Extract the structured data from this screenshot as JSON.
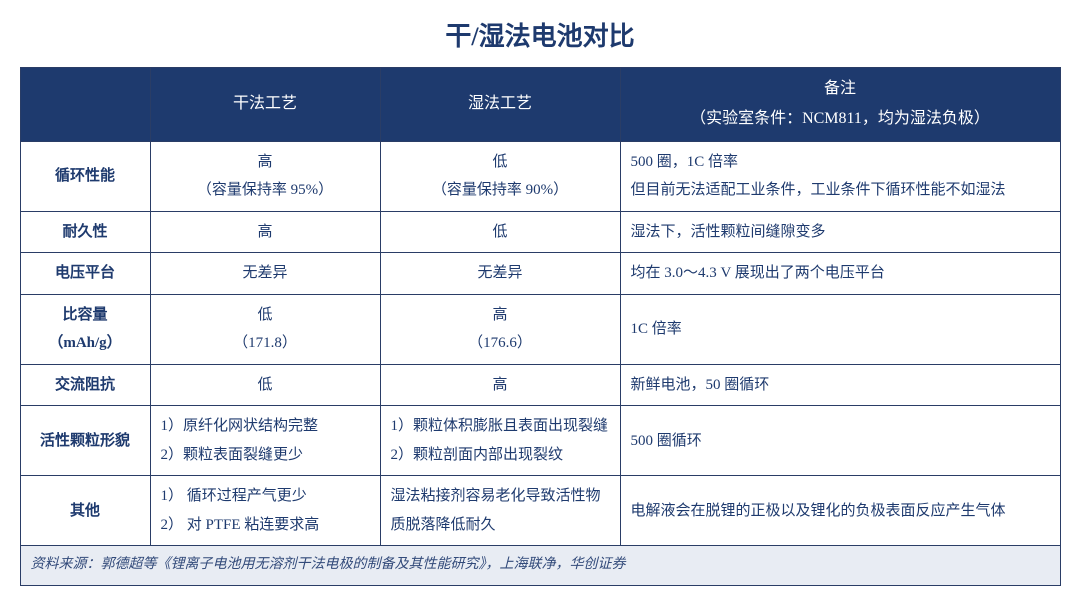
{
  "title": "干/湿法电池对比",
  "headers": {
    "blank": "",
    "col1": "干法工艺",
    "col2": "湿法工艺",
    "col3_line1": "备注",
    "col3_line2": "（实验室条件：NCM811，均为湿法负极）"
  },
  "rows": {
    "r1": {
      "label": "循环性能",
      "dry_l1": "高",
      "dry_l2": "（容量保持率 95%）",
      "wet_l1": "低",
      "wet_l2": "（容量保持率 90%）",
      "note_l1": "500 圈，1C 倍率",
      "note_l2": "但目前无法适配工业条件，工业条件下循环性能不如湿法"
    },
    "r2": {
      "label": "耐久性",
      "dry": "高",
      "wet": "低",
      "note": "湿法下，活性颗粒间缝隙变多"
    },
    "r3": {
      "label": "电压平台",
      "dry": "无差异",
      "wet": "无差异",
      "note": "均在 3.0～4.3 V 展现出了两个电压平台"
    },
    "r4": {
      "label_l1": "比容量",
      "label_l2": "（mAh/g）",
      "dry_l1": "低",
      "dry_l2": "（171.8）",
      "wet_l1": "高",
      "wet_l2": "（176.6）",
      "note": "1C 倍率"
    },
    "r5": {
      "label": "交流阻抗",
      "dry": "低",
      "wet": "高",
      "note": "新鲜电池，50 圈循环"
    },
    "r6": {
      "label": "活性颗粒形貌",
      "dry_l1": "1）原纤化网状结构完整",
      "dry_l2": "2）颗粒表面裂缝更少",
      "wet_l1": "1）颗粒体积膨胀且表面出现裂缝",
      "wet_l2": "2）颗粒剖面内部出现裂纹",
      "note": "500 圈循环"
    },
    "r7": {
      "label": "其他",
      "dry_l1": "1）  循环过程产气更少",
      "dry_l2": "2）  对 PTFE 粘连要求高",
      "wet": "湿法粘接剂容易老化导致活性物质脱落降低耐久",
      "note": "电解液会在脱锂的正极以及锂化的负极表面反应产生气体"
    }
  },
  "footer": "资料来源：郭德超等《锂离子电池用无溶剂干法电极的制备及其性能研究》，上海联净，华创证券",
  "colors": {
    "header_bg": "#1e3a6e",
    "header_text": "#ffffff",
    "border": "#2a3d66",
    "body_text": "#1e3a6e",
    "footer_bg": "#e8ecf3"
  }
}
